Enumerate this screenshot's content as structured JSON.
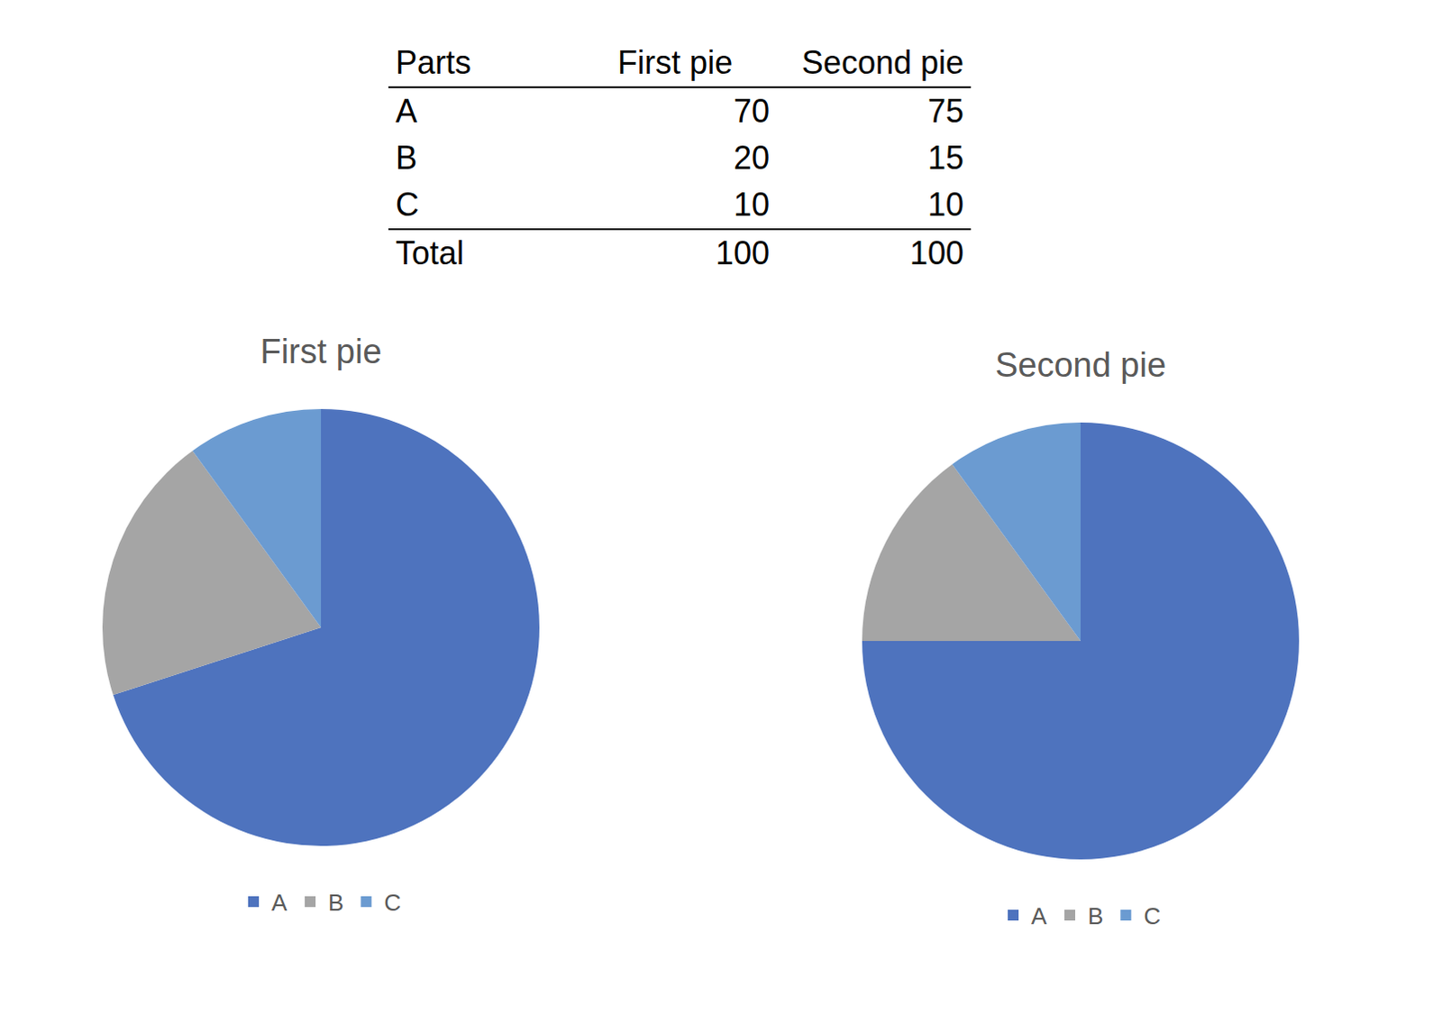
{
  "table": {
    "header": [
      "Parts",
      "First pie",
      "Second pie"
    ],
    "rows": [
      [
        "A",
        70,
        75
      ],
      [
        "B",
        20,
        15
      ],
      [
        "C",
        10,
        10
      ]
    ],
    "footer": [
      "Total",
      100,
      100
    ]
  },
  "chart_data": [
    {
      "type": "pie",
      "title": "First pie",
      "categories": [
        "A",
        "B",
        "C"
      ],
      "values": [
        70,
        20,
        10
      ],
      "colors": [
        "#4e73be",
        "#a5a5a5",
        "#6b9bd1"
      ],
      "legend": "bottom",
      "data_labels": false
    },
    {
      "type": "pie",
      "title": "Second pie",
      "categories": [
        "A",
        "B",
        "C"
      ],
      "values": [
        75,
        15,
        10
      ],
      "colors": [
        "#4e73be",
        "#a5a5a5",
        "#6b9bd1"
      ],
      "legend": "bottom",
      "data_labels": false
    }
  ]
}
